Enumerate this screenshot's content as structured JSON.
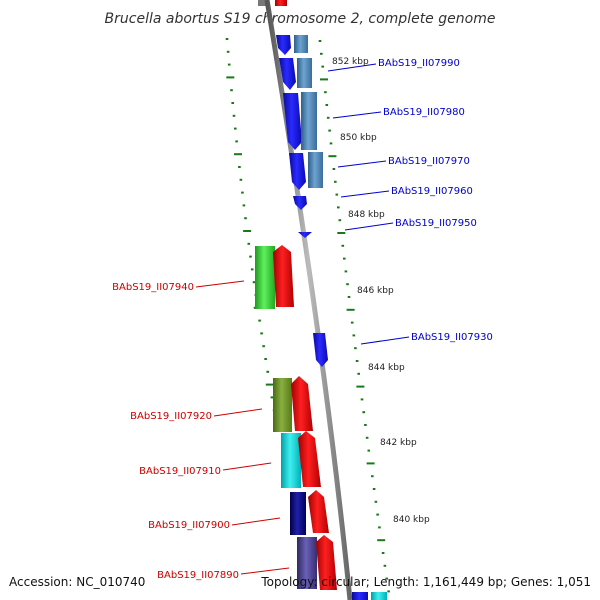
{
  "title": "Brucella abortus S19 chromosome 2, complete genome",
  "accession": "Accession: NC_010740",
  "topology": "Topology: circular; Length: 1,161,449 bp; Genes: 1,051",
  "ticks": [
    {
      "label": "852 kbp"
    },
    {
      "label": "850 kbp"
    },
    {
      "label": "848 kbp"
    },
    {
      "label": "846 kbp"
    },
    {
      "label": "844 kbp"
    },
    {
      "label": "842 kbp"
    },
    {
      "label": "840 kbp"
    }
  ],
  "genes_plus": [
    {
      "label": "BAbS19_II07990"
    },
    {
      "label": "BAbS19_II07980"
    },
    {
      "label": "BAbS19_II07970"
    },
    {
      "label": "BAbS19_II07960"
    },
    {
      "label": "BAbS19_II07950"
    },
    {
      "label": "BAbS19_II07930"
    }
  ],
  "genes_minus": [
    {
      "label": "BAbS19_II07940"
    },
    {
      "label": "BAbS19_II07920"
    },
    {
      "label": "BAbS19_II07910"
    },
    {
      "label": "BAbS19_II07900"
    },
    {
      "label": "BAbS19_II07890"
    }
  ],
  "colors": {
    "plus_strand": "#1010ee",
    "minus_strand": "#ee1010",
    "cog_steelblue": "#4682b4",
    "cog_green": "#32cd32",
    "cog_olive": "#6b8e23",
    "cog_cyan": "#00ced1",
    "cog_navy": "#000080",
    "cog_slate": "#483d8b",
    "plus_label": "#0000cc",
    "minus_label": "#cc0000",
    "tick": "#1a7a1a",
    "backbone": "#888888"
  }
}
